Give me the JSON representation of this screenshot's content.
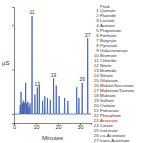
{
  "chart_data": {
    "type": "line",
    "x_label": "Minutes",
    "y_label": "µS",
    "xlim": [
      0,
      35
    ],
    "xticks": [
      0,
      10,
      20,
      30
    ],
    "ylim": [
      -1,
      12
    ],
    "yticks": [
      0,
      5,
      10
    ],
    "tick_labels": "x",
    "grid": false,
    "x": [
      0,
      2.65,
      2.8,
      2.95,
      3.05,
      3.2,
      3.35,
      3.65,
      3.8,
      3.95,
      4.05,
      4.2,
      4.35,
      4.55,
      4.7,
      4.85,
      5.15,
      5.3,
      5.45,
      5.65,
      5.8,
      5.95,
      6.15,
      6.3,
      6.45,
      6.65,
      6.8,
      6.95,
      7.15,
      7.3,
      7.45,
      8.05,
      8.2,
      8.35,
      9.35,
      9.5,
      9.65,
      10.45,
      10.6,
      10.75,
      11.35,
      11.5,
      11.65,
      12.85,
      13.0,
      13.15,
      13.85,
      14.0,
      14.15,
      15.05,
      15.2,
      15.35,
      16.35,
      16.5,
      16.65,
      17.85,
      18.0,
      18.15,
      19.05,
      19.2,
      19.35,
      20.35,
      20.5,
      20.65,
      22.85,
      23.0,
      23.15,
      24.35,
      24.5,
      24.65,
      28.35,
      28.5,
      28.65,
      29.35,
      29.5,
      29.65,
      30.85,
      31.0,
      31.15,
      33.35,
      33.5,
      33.65,
      35
    ],
    "series": [
      {
        "color": "#2b4fa0",
        "values": [
          0,
          0,
          1.0,
          0,
          0,
          2.5,
          0,
          0,
          1.2,
          0,
          0,
          1.5,
          0,
          0,
          1.3,
          0,
          0,
          3.5,
          0,
          0,
          1.2,
          0,
          0,
          1.4,
          0,
          0,
          0.8,
          0,
          0,
          1.2,
          0,
          0,
          11,
          0,
          0,
          2.2,
          0,
          0,
          3.0,
          0,
          0,
          3.2,
          0,
          0,
          1.5,
          0,
          0,
          2.0,
          0,
          0,
          1.8,
          0,
          0,
          1.6,
          0,
          0,
          4.0,
          0,
          0,
          3.2,
          0,
          0,
          2.0,
          0,
          0,
          1.8,
          0,
          0,
          1.5,
          0,
          0,
          3.0,
          0,
          0,
          1.8,
          0,
          0,
          3.5,
          0,
          0,
          8.5,
          0,
          0
        ]
      }
    ],
    "annotations": [
      {
        "x": 8.2,
        "y": 11,
        "text": "11"
      },
      {
        "x": 10.6,
        "y": 3.0,
        "text": "13"
      },
      {
        "x": 18.0,
        "y": 4.0,
        "text": "19"
      },
      {
        "x": 31.0,
        "y": 3.5,
        "text": "26"
      },
      {
        "x": 33.5,
        "y": 8.5,
        "text": "27"
      }
    ],
    "legend_title": "Peak",
    "peaks": [
      {
        "number": 1,
        "name": "Quinate"
      },
      {
        "number": 2,
        "name": "Fluoride"
      },
      {
        "number": 3,
        "name": "Lactate"
      },
      {
        "number": 4,
        "name": "Acetate"
      },
      {
        "number": 5,
        "name": "Propionate"
      },
      {
        "number": 6,
        "name": "Formate"
      },
      {
        "number": 7,
        "name": "Butyrate"
      },
      {
        "number": 8,
        "name": "Pyruvate"
      },
      {
        "number": 9,
        "name": "Galacturonate"
      },
      {
        "number": 10,
        "name": "Bromate"
      },
      {
        "number": 11,
        "name": "Chloride"
      },
      {
        "number": 12,
        "name": "Nitrite"
      },
      {
        "number": 13,
        "name": "Bromide"
      },
      {
        "number": 14,
        "name": "Nitrate"
      },
      {
        "number": 15,
        "name": "Glutarate"
      },
      {
        "number": 16,
        "name": "Malate/Succinate"
      },
      {
        "number": 17,
        "name": "Malonate/Tartrate"
      },
      {
        "number": 18,
        "name": "Maleate"
      },
      {
        "number": 19,
        "name": "Sulfate"
      },
      {
        "number": 20,
        "name": "Oxalate"
      },
      {
        "number": 21,
        "name": "Fumarate"
      },
      {
        "number": 22,
        "name": "Phosphate"
      },
      {
        "number": 23,
        "name": "Arsenate",
        "color": "#d40000"
      },
      {
        "number": 24,
        "name": "Citrate"
      },
      {
        "number": 25,
        "name": "Isocitrate"
      },
      {
        "number": 26,
        "name": "cis-Aconitate"
      },
      {
        "number": 27,
        "name": "trans-Aconitate"
      }
    ]
  }
}
